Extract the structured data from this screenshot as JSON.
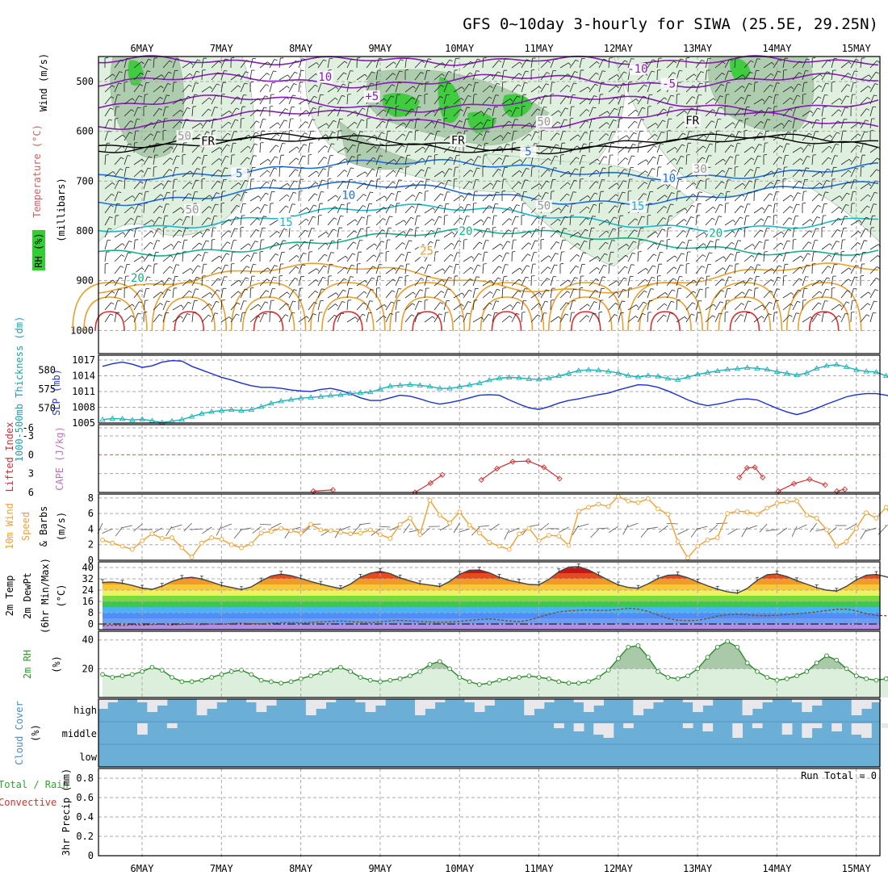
{
  "chart_data": {
    "type": "line",
    "title": "GFS 0~10day 3-hourly for SIWA (25.5E, 29.25N)",
    "date_labels": [
      "6MAY",
      "7MAY",
      "8MAY",
      "9MAY",
      "10MAY",
      "11MAY",
      "12MAY",
      "13MAY",
      "14MAY",
      "15MAY"
    ],
    "colors": {
      "temp_purple": "#8a1bb8",
      "temp_blue": "#1e6fd9",
      "temp_cyan": "#19b7c8",
      "temp_teal": "#18b08a",
      "temp_orange": "#e8a030",
      "temp_red": "#e03030",
      "rh_light": "#dcefdc",
      "rh_mid": "#a9c9a9",
      "rh_green": "#33cc33",
      "cloud_blue": "#6baed6",
      "cloud_gray": "#e8e8ec",
      "slp_blue": "#1a2fd0",
      "thick_cyan": "#20b0b8",
      "li_red": "#d43030",
      "wind_orange": "#f0a030",
      "rh2m_green": "#2a8a2a",
      "rh2m_fill": "#dcefdc"
    },
    "panels": {
      "upper": {
        "ylabel_wind": "Wind (m/s)",
        "ylabel_temp": "Temperature (°C)",
        "ylabel_rh": "RH (%)",
        "ylabel_p": "(millibars)",
        "p_ticks": [
          "500",
          "600",
          "700",
          "800",
          "900",
          "1000"
        ],
        "contour_labels": [
          {
            "text": "10",
            "color": "#8a1bb8",
            "t": 0.29,
            "p": 498
          },
          {
            "text": "-10",
            "color": "#8a1bb8",
            "t": 0.69,
            "p": 482
          },
          {
            "text": "-5",
            "color": "#8a1bb8",
            "t": 0.73,
            "p": 512
          },
          {
            "text": "+5",
            "color": "#8a1bb8",
            "t": 0.35,
            "p": 537
          },
          {
            "text": "FR",
            "color": "#000000",
            "t": 0.14,
            "p": 627
          },
          {
            "text": "FR",
            "color": "#000000",
            "t": 0.46,
            "p": 626
          },
          {
            "text": "FR",
            "color": "#000000",
            "t": 0.76,
            "p": 586
          },
          {
            "text": "5",
            "color": "#1e6fd9",
            "t": 0.18,
            "p": 692
          },
          {
            "text": "5",
            "color": "#1e6fd9",
            "t": 0.55,
            "p": 648
          },
          {
            "text": "10",
            "color": "#1e6fd9",
            "t": 0.32,
            "p": 736
          },
          {
            "text": "10",
            "color": "#1e6fd9",
            "t": 0.73,
            "p": 702
          },
          {
            "text": "15",
            "color": "#19b7c8",
            "t": 0.24,
            "p": 790
          },
          {
            "text": "15",
            "color": "#19b7c8",
            "t": 0.69,
            "p": 758
          },
          {
            "text": "20",
            "color": "#18b08a",
            "t": 0.47,
            "p": 808
          },
          {
            "text": "20",
            "color": "#18b08a",
            "t": 0.79,
            "p": 812
          },
          {
            "text": "20",
            "color": "#18b08a",
            "t": 0.05,
            "p": 902
          },
          {
            "text": "25",
            "color": "#e8a030",
            "t": 0.42,
            "p": 848
          },
          {
            "text": "50",
            "color": "#999999",
            "t": 0.11,
            "p": 617
          },
          {
            "text": "50",
            "color": "#999999",
            "t": 0.12,
            "p": 765
          },
          {
            "text": "50",
            "color": "#999999",
            "t": 0.57,
            "p": 757
          },
          {
            "text": "50",
            "color": "#999999",
            "t": 0.57,
            "p": 588
          },
          {
            "text": "30",
            "color": "#999999",
            "t": 0.77,
            "p": 683
          }
        ]
      },
      "thickness_slp": {
        "ylabel_thick": "1000-500mb Thickness (dm)",
        "ylabel_slp": "SLP (mb)",
        "thick_ticks": [
          "580",
          "575",
          "570"
        ],
        "slp_ticks": [
          "1017",
          "1014",
          "1011",
          "1008",
          "1005"
        ],
        "slp_range": [
          1005,
          1017
        ],
        "thick_range": [
          566,
          584
        ],
        "slp": [
          1015.8,
          1016.3,
          1016.6,
          1016.2,
          1015.6,
          1015.9,
          1016.6,
          1016.9,
          1016.8,
          1015.8,
          1015.1,
          1014.4,
          1013.7,
          1013.2,
          1012.6,
          1012.1,
          1011.8,
          1011.8,
          1011.6,
          1011.3,
          1011.1,
          1011.0,
          1011.4,
          1011.6,
          1011.2,
          1010.6,
          1009.8,
          1009.3,
          1009.3,
          1009.8,
          1010.3,
          1010.1,
          1009.6,
          1009.0,
          1008.6,
          1008.9,
          1009.3,
          1009.8,
          1010.3,
          1010.4,
          1010.3,
          1009.4,
          1008.6,
          1007.9,
          1007.6,
          1008.1,
          1008.8,
          1009.3,
          1009.6,
          1010.0,
          1010.4,
          1010.7,
          1011.3,
          1011.8,
          1012.3,
          1012.2,
          1011.8,
          1011.1,
          1010.3,
          1009.4,
          1008.7,
          1008.3,
          1008.6,
          1009.0,
          1009.5,
          1009.6,
          1009.4,
          1008.6,
          1007.8,
          1007.1,
          1006.6,
          1007.1,
          1007.8,
          1008.6,
          1009.3,
          1010.0,
          1010.4,
          1010.6,
          1010.6,
          1010.3,
          1009.8,
          1009.4,
          1009.3,
          1010.1,
          1010.8,
          1011.1,
          1010.4,
          1009.8,
          1009.5,
          1009.8
        ],
        "thickness": [
          566.9,
          567.2,
          567.1,
          566.8,
          567.0,
          566.6,
          566.1,
          566.5,
          566.9,
          567.7,
          568.5,
          569.0,
          569.3,
          569.5,
          569.3,
          569.5,
          570.3,
          571.2,
          571.8,
          572.2,
          572.6,
          572.8,
          573.0,
          573.3,
          573.5,
          573.8,
          574.0,
          574.2,
          575.0,
          575.8,
          576.0,
          576.2,
          576.0,
          575.7,
          575.2,
          575.2,
          575.6,
          576.1,
          576.6,
          577.4,
          577.9,
          578.1,
          578.0,
          577.7,
          577.6,
          577.9,
          578.5,
          579.2,
          579.9,
          580.1,
          580.0,
          579.7,
          579.3,
          578.6,
          578.2,
          578.6,
          578.4,
          577.8,
          577.5,
          578.2,
          578.9,
          579.4,
          579.8,
          580.2,
          580.4,
          580.7,
          580.5,
          580.2,
          579.6,
          579.2,
          578.7,
          579.3,
          580.5,
          581.2,
          581.5,
          580.9,
          580.1,
          579.7,
          579.5,
          578.5,
          577.5,
          577.2,
          577.4,
          578.0,
          578.4,
          578.7,
          579.2,
          579.5,
          579.3,
          579.7
        ]
      },
      "li_cape": {
        "ylabel_li": "Lifted Index",
        "ylabel_cape": "CAPE (J/kg)",
        "li_ticks": [
          "-6",
          "-3",
          "0",
          "3",
          "6"
        ],
        "li_segments": [
          {
            "t": [
              0.405,
              0.425,
              0.44
            ],
            "v": [
              6,
              4.5,
              3.2
            ]
          },
          {
            "t": [
              0.49,
              0.51,
              0.53,
              0.55,
              0.57,
              0.59
            ],
            "v": [
              4.0,
              2.2,
              1.1,
              1.0,
              2.0,
              3.8
            ]
          },
          {
            "t": [
              0.82,
              0.83,
              0.84,
              0.85
            ],
            "v": [
              3.6,
              2.1,
              2.0,
              3.6
            ]
          },
          {
            "t": [
              0.87,
              0.89,
              0.91,
              0.93
            ],
            "v": [
              5.8,
              4.6,
              3.9,
              4.8
            ]
          },
          {
            "t": [
              0.275,
              0.3
            ],
            "v": [
              5.8,
              5.6
            ]
          },
          {
            "t": [
              0.945,
              0.955
            ],
            "v": [
              5.8,
              5.5
            ]
          }
        ]
      },
      "wind10m": {
        "ylabel": "10m Wind Speed & Barbs (m/s)",
        "label_wind": "10m Wind",
        "label_speed": "Speed",
        "label_barbs": "& Barbs",
        "label_units": "(m/s)",
        "ticks": [
          "8",
          "6",
          "4",
          "2",
          "0"
        ],
        "range": [
          0,
          8.5
        ],
        "speed": [
          2.6,
          2.2,
          1.8,
          1.4,
          2.5,
          3.4,
          2.8,
          2.9,
          1.6,
          0.4,
          2.2,
          2.9,
          2.7,
          2.0,
          1.6,
          2.1,
          3.5,
          3.7,
          4.1,
          3.8,
          3.5,
          4.6,
          3.9,
          3.8,
          3.6,
          3.4,
          3.5,
          3.9,
          3.3,
          2.8,
          4.6,
          5.4,
          3.3,
          7.7,
          5.8,
          4.8,
          6.2,
          4.5,
          3.5,
          2.3,
          1.8,
          1.4,
          3.4,
          4.1,
          2.5,
          3.2,
          3.1,
          1.9,
          6.3,
          6.8,
          7.2,
          6.9,
          8.2,
          7.6,
          7.4,
          7.9,
          6.6,
          5.9,
          2.4,
          0.3,
          1.8,
          2.6,
          2.9,
          6.0,
          6.3,
          6.2,
          5.9,
          6.7,
          7.3,
          7.5,
          7.6,
          5.8,
          5.4,
          3.9,
          1.8,
          2.4,
          4.1,
          6.1,
          5.4,
          6.8,
          4.4,
          4.5,
          5.3,
          5.0,
          2.8,
          3.7,
          5.9,
          6.2,
          6.1,
          7.9
        ]
      },
      "temp2m": {
        "ylabel": "2m Temp 2m DewPt (6hr Min/Max) (°C)",
        "label_temp": "2m Temp",
        "label_dew": "2m DewPt",
        "label_minmax": "(6hr Min/Max)",
        "label_units": "(°C)",
        "ticks": [
          "40",
          "32",
          "24",
          "16",
          "8",
          "0"
        ],
        "range": [
          -4,
          44
        ],
        "temp": [
          29.5,
          29.8,
          28.9,
          27.3,
          25.4,
          24.6,
          26.8,
          30.1,
          32.4,
          33.1,
          31.9,
          29.7,
          27.3,
          25.9,
          24.4,
          26.3,
          30.5,
          34.0,
          35.3,
          34.3,
          32.3,
          30.1,
          28.2,
          26.5,
          25.1,
          28.3,
          33.2,
          36.0,
          37.3,
          35.7,
          32.7,
          30.5,
          28.5,
          27.6,
          26.6,
          30.2,
          35.2,
          38.1,
          38.2,
          36.3,
          33.1,
          30.9,
          29.5,
          28.0,
          27.8,
          31.6,
          37.0,
          40.3,
          40.6,
          38.3,
          34.7,
          31.1,
          27.7,
          25.9,
          25.3,
          28.4,
          32.3,
          34.5,
          34.8,
          32.8,
          29.8,
          27.1,
          24.7,
          22.8,
          21.9,
          25.2,
          31.0,
          34.9,
          35.5,
          33.6,
          30.7,
          28.2,
          25.7,
          24.0,
          23.3,
          26.7,
          31.3,
          34.5,
          35.1,
          33.5,
          30.9,
          28.9,
          26.4,
          24.9,
          24.6,
          27.6,
          33.1,
          36.3,
          36.2,
          34.2
        ],
        "dew": [
          -1.2,
          -0.8,
          -1.1,
          -0.5,
          -0.9,
          -0.4,
          -0.2,
          -0.7,
          -0.3,
          -0.1,
          -0.5,
          0.0,
          -0.3,
          0.4,
          0.6,
          0.2,
          0.1,
          0.6,
          0.9,
          1.1,
          0.8,
          1.2,
          1.5,
          1.9,
          2.2,
          1.8,
          1.3,
          1.1,
          1.6,
          2.3,
          2.6,
          2.2,
          1.8,
          1.5,
          1.2,
          1.4,
          1.9,
          2.6,
          3.2,
          3.6,
          3.0,
          2.1,
          1.6,
          2.8,
          4.8,
          6.9,
          8.6,
          9.3,
          9.7,
          10.0,
          9.6,
          9.8,
          10.3,
          11.1,
          10.6,
          8.9,
          6.4,
          3.9,
          2.7,
          2.4,
          2.7,
          3.9,
          5.6,
          6.6,
          6.9,
          6.6,
          6.0,
          5.9,
          6.2,
          6.7,
          7.3,
          7.9,
          8.6,
          9.6,
          10.4,
          10.6,
          9.3,
          7.3,
          6.1,
          5.9,
          6.6,
          7.4,
          8.2,
          8.4,
          7.5,
          6.9,
          7.1,
          7.3,
          7.5,
          8.0
        ]
      },
      "rh2m": {
        "ylabel": "2m RH (%)",
        "label_rh": "2m RH",
        "label_units": "(%)",
        "ticks": [
          "40",
          "20"
        ],
        "range": [
          0,
          46
        ],
        "rh": [
          16,
          14,
          15,
          16,
          18,
          21,
          19,
          14,
          11,
          11,
          12,
          14,
          16,
          18,
          19,
          16,
          12,
          11,
          10,
          11,
          13,
          15,
          17,
          19,
          21,
          18,
          14,
          12,
          11,
          12,
          13,
          15,
          18,
          23,
          25,
          20,
          14,
          11,
          9,
          10,
          12,
          13,
          14,
          15,
          14,
          13,
          11,
          10,
          10,
          11,
          14,
          19,
          27,
          35,
          36,
          28,
          18,
          14,
          13,
          15,
          20,
          28,
          35,
          39,
          35,
          24,
          18,
          14,
          12,
          13,
          15,
          18,
          24,
          29,
          26,
          20,
          15,
          13,
          12,
          13,
          19,
          28,
          38,
          45,
          36,
          24,
          18,
          17,
          23,
          30,
          31,
          29
        ]
      },
      "cloud": {
        "ylabel": "Cloud Cover (%)",
        "label_cloud": "Cloud Cover",
        "label_units": "(%)",
        "levels": [
          "high",
          "middle",
          "low"
        ]
      },
      "precip": {
        "ylabel": "3hr Precip (mm)",
        "label_precip": "3hr Precip (mm)",
        "label_total": "Total / Rain",
        "label_conv": "Convective",
        "run_total": "Run Total = 0",
        "ticks": [
          "0.8",
          "0.6",
          "0.4",
          "0.2",
          "0"
        ],
        "range": [
          0,
          0.9
        ]
      }
    }
  }
}
